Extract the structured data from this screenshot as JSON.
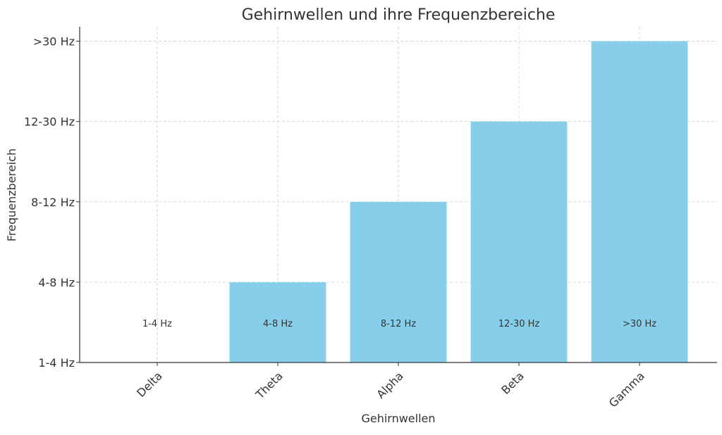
{
  "chart_data": {
    "type": "bar",
    "title": "Gehirnwellen und ihre Frequenzbereiche",
    "xlabel": "Gehirnwellen",
    "ylabel": "Frequenzbereich",
    "categories": [
      "Delta",
      "Theta",
      "Alpha",
      "Beta",
      "Gamma"
    ],
    "values": [
      0,
      1,
      2,
      3,
      4
    ],
    "ytick_labels": [
      "1-4 Hz",
      "4-8 Hz",
      "8-12 Hz",
      "12-30 Hz",
      ">30 Hz"
    ],
    "bar_labels": [
      "1-4 Hz",
      "4-8 Hz",
      "8-12 Hz",
      "12-30 Hz",
      ">30 Hz"
    ],
    "ylim": [
      0,
      4.18
    ],
    "grid": true,
    "bar_color": "#87ceeb"
  }
}
